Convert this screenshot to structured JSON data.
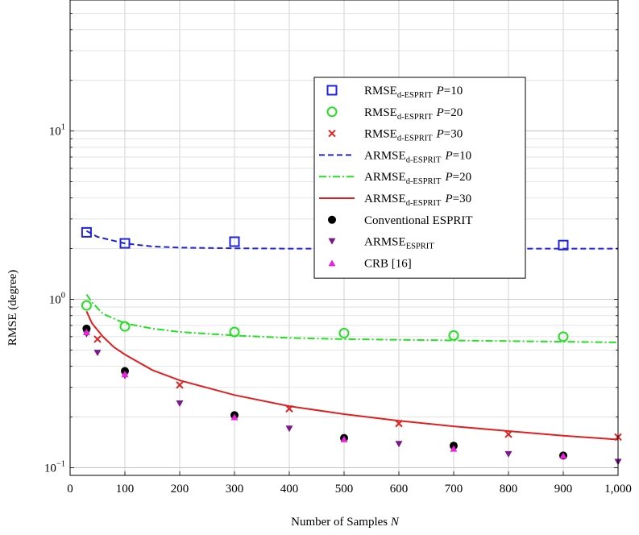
{
  "chart_data": {
    "type": "line",
    "xlabel": "Number of Samples",
    "xlabel_var": "N",
    "ylabel": "RMSE (degree)",
    "yscale": "log",
    "xlim": [
      0,
      1000
    ],
    "ylim": [
      0.09,
      60
    ],
    "grid": true,
    "legend_position": "upper-center-right",
    "x_ticks": [
      0,
      100,
      200,
      300,
      400,
      500,
      600,
      700,
      800,
      900,
      1000
    ],
    "x_tick_labels": [
      "0",
      "100",
      "200",
      "300",
      "400",
      "500",
      "600",
      "700",
      "800",
      "900",
      "1,000"
    ],
    "y_ticks": [
      0.1,
      1,
      10
    ],
    "y_tick_labels": [
      {
        "base": "10",
        "exp": "−1"
      },
      {
        "base": "10",
        "exp": "0"
      },
      {
        "base": "10",
        "exp": "1"
      }
    ],
    "series": [
      {
        "name": "RMSE",
        "sub": "d-ESPRIT",
        "suffix": " P=10",
        "kind": "marker",
        "marker": "square-open",
        "color": "#1f22e0",
        "x": [
          30,
          100,
          300,
          900
        ],
        "y": [
          2.5,
          2.15,
          2.2,
          2.1
        ]
      },
      {
        "name": "RMSE",
        "sub": "d-ESPRIT",
        "suffix": " P=20",
        "kind": "marker",
        "marker": "circle-open",
        "color": "#22e022",
        "x": [
          30,
          100,
          300,
          500,
          700,
          900
        ],
        "y": [
          0.92,
          0.69,
          0.64,
          0.63,
          0.61,
          0.6
        ]
      },
      {
        "name": "RMSE",
        "sub": "d-ESPRIT",
        "suffix": " P=30",
        "kind": "marker",
        "marker": "cross",
        "color": "#e02020",
        "x": [
          50,
          200,
          400,
          600,
          800,
          1000
        ],
        "y": [
          0.58,
          0.31,
          0.224,
          0.183,
          0.158,
          0.152
        ]
      },
      {
        "name": "ARMSE",
        "sub": "d-ESPRIT",
        "suffix": " P=10",
        "kind": "line",
        "dash": "dashed",
        "color": "#1f22e0",
        "x": [
          30,
          50,
          100,
          150,
          200,
          300,
          400,
          500,
          600,
          700,
          800,
          900,
          1000
        ],
        "y": [
          2.55,
          2.35,
          2.15,
          2.06,
          2.03,
          2.01,
          2.0,
          2.0,
          2.0,
          2.0,
          2.0,
          2.0,
          2.0
        ]
      },
      {
        "name": "ARMSE",
        "sub": "d-ESPRIT",
        "suffix": " P=20",
        "kind": "line",
        "dash": "dashdot",
        "color": "#22e022",
        "x": [
          30,
          40,
          60,
          100,
          150,
          200,
          300,
          400,
          500,
          600,
          700,
          800,
          900,
          1000
        ],
        "y": [
          1.07,
          0.96,
          0.82,
          0.72,
          0.67,
          0.64,
          0.61,
          0.59,
          0.58,
          0.575,
          0.57,
          0.565,
          0.56,
          0.555
        ]
      },
      {
        "name": "ARMSE",
        "sub": "d-ESPRIT",
        "suffix": " P=30",
        "kind": "line",
        "dash": "solid",
        "color": "#e02020",
        "x": [
          30,
          40,
          60,
          80,
          100,
          150,
          200,
          300,
          400,
          500,
          600,
          700,
          800,
          900,
          1000
        ],
        "y": [
          0.85,
          0.72,
          0.6,
          0.52,
          0.47,
          0.38,
          0.33,
          0.27,
          0.232,
          0.208,
          0.19,
          0.176,
          0.165,
          0.155,
          0.147
        ]
      },
      {
        "name": "Conventional ESPRIT",
        "sub": "",
        "suffix": "",
        "kind": "marker",
        "marker": "circle-filled",
        "color": "#000000",
        "x": [
          30,
          100,
          300,
          500,
          700,
          900
        ],
        "y": [
          0.67,
          0.375,
          0.205,
          0.15,
          0.135,
          0.118
        ]
      },
      {
        "name": "ARMSE",
        "sub": "ESPRIT",
        "suffix": "",
        "kind": "marker",
        "marker": "triangle-down",
        "color": "#7a1a8a",
        "x": [
          30,
          50,
          100,
          200,
          400,
          600,
          800,
          1000
        ],
        "y": [
          0.62,
          0.48,
          0.35,
          0.24,
          0.17,
          0.138,
          0.12,
          0.108
        ]
      },
      {
        "name": "CRB [16]",
        "sub": "",
        "suffix": "",
        "kind": "marker",
        "marker": "triangle-up",
        "color": "#ee22dd",
        "x": [
          30,
          100,
          300,
          500,
          700,
          900
        ],
        "y": [
          0.64,
          0.36,
          0.2,
          0.148,
          0.13,
          0.118
        ]
      }
    ]
  }
}
